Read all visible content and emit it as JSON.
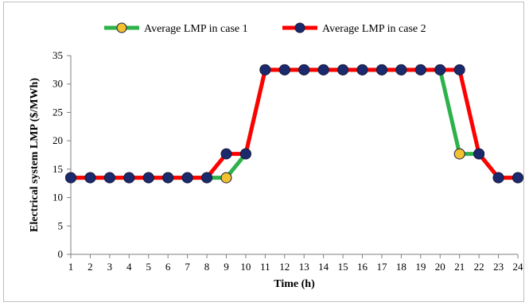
{
  "chart_data": {
    "type": "line",
    "title": "",
    "xlabel": "Time (h)",
    "ylabel": "Electrical system LMP ($/MWh)",
    "ylim": [
      0,
      35
    ],
    "yticks": [
      0,
      5,
      10,
      15,
      20,
      25,
      30,
      35
    ],
    "x": [
      1,
      2,
      3,
      4,
      5,
      6,
      7,
      8,
      9,
      10,
      11,
      12,
      13,
      14,
      15,
      16,
      17,
      18,
      19,
      20,
      21,
      22,
      23,
      24
    ],
    "grid": false,
    "legend_position": "top-center",
    "series": [
      {
        "name": "Average LMP in case 1",
        "line_color": "#2db24a",
        "marker_color": "#f2c12e",
        "values": [
          13.5,
          13.5,
          13.5,
          13.5,
          13.5,
          13.5,
          13.5,
          13.5,
          13.5,
          17.7,
          32.5,
          32.5,
          32.5,
          32.5,
          32.5,
          32.5,
          32.5,
          32.5,
          32.5,
          32.5,
          17.7,
          17.7,
          13.5,
          13.5
        ]
      },
      {
        "name": "Average LMP in case 2",
        "line_color": "#ff0000",
        "marker_color": "#1a2a6c",
        "values": [
          13.5,
          13.5,
          13.5,
          13.5,
          13.5,
          13.5,
          13.5,
          13.5,
          17.7,
          17.7,
          32.5,
          32.5,
          32.5,
          32.5,
          32.5,
          32.5,
          32.5,
          32.5,
          32.5,
          32.5,
          32.5,
          17.7,
          13.5,
          13.5
        ]
      }
    ]
  }
}
